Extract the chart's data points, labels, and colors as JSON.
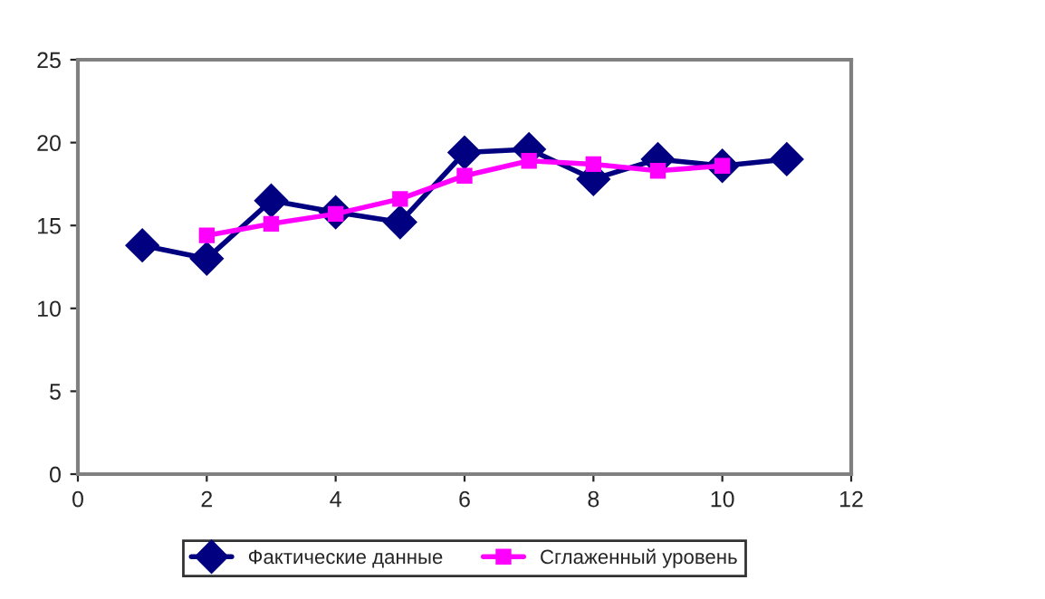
{
  "chart_data": {
    "type": "line",
    "x": [
      1,
      2,
      3,
      4,
      5,
      6,
      7,
      8,
      9,
      10,
      11
    ],
    "series": [
      {
        "name": "Фактические данные",
        "color": "#000080",
        "marker": "diamond",
        "values": [
          13.8,
          13.0,
          16.5,
          15.8,
          15.2,
          19.4,
          19.6,
          17.8,
          19.0,
          18.6,
          19.0
        ]
      },
      {
        "name": "Сглаженный уровень",
        "color": "#ff00ff",
        "marker": "square",
        "values": [
          null,
          14.4,
          15.1,
          15.7,
          16.6,
          18.0,
          18.9,
          18.7,
          18.3,
          18.6,
          null
        ]
      }
    ],
    "xlim": [
      0,
      12
    ],
    "xticks": [
      0,
      2,
      4,
      6,
      8,
      10,
      12
    ],
    "ylim": [
      0,
      25
    ],
    "yticks": [
      0,
      5,
      10,
      15,
      20,
      25
    ],
    "grid": false,
    "legend": "bottom",
    "line_style": "solid"
  }
}
